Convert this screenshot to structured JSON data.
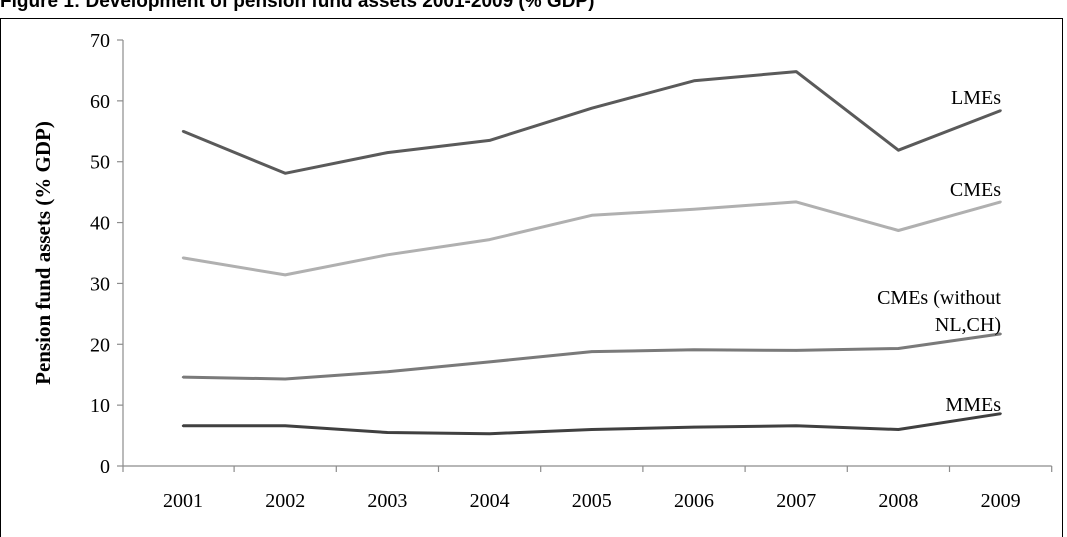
{
  "figure": {
    "title": "Figure 1: Development of pension fund assets 2001-2009 (% GDP)"
  },
  "chart_data": {
    "type": "line",
    "title": "Figure 1: Development of pension fund assets 2001-2009 (% GDP)",
    "xlabel": "",
    "ylabel": "Pension fund assets (% GDP)",
    "categories": [
      "2001",
      "2002",
      "2003",
      "2004",
      "2005",
      "2006",
      "2007",
      "2008",
      "2009"
    ],
    "ylim": [
      0,
      70
    ],
    "yticks": [
      "0",
      "10",
      "20",
      "30",
      "40",
      "50",
      "60",
      "70"
    ],
    "grid": false,
    "legend": "inline labels at right end of lines",
    "series": [
      {
        "name": "LMEs",
        "label_lines": [
          "LMEs"
        ],
        "color": "#5a5a5a",
        "values": [
          55.0,
          48.1,
          51.5,
          53.5,
          58.8,
          63.3,
          64.8,
          51.9,
          58.4
        ]
      },
      {
        "name": "CMEs",
        "label_lines": [
          "CMEs"
        ],
        "color": "#b0b0b0",
        "values": [
          34.2,
          31.4,
          34.7,
          37.2,
          41.2,
          42.2,
          43.4,
          38.7,
          43.4
        ]
      },
      {
        "name": "CMEs (without NL,CH)",
        "label_lines": [
          "CMEs (without",
          "NL,CH)"
        ],
        "color": "#7a7a7a",
        "values": [
          14.6,
          14.3,
          15.5,
          17.1,
          18.8,
          19.1,
          19.0,
          19.3,
          21.7
        ]
      },
      {
        "name": "MMEs",
        "label_lines": [
          "MMEs"
        ],
        "color": "#404040",
        "values": [
          6.6,
          6.6,
          5.5,
          5.3,
          6.0,
          6.4,
          6.6,
          6.0,
          8.6
        ]
      }
    ]
  }
}
